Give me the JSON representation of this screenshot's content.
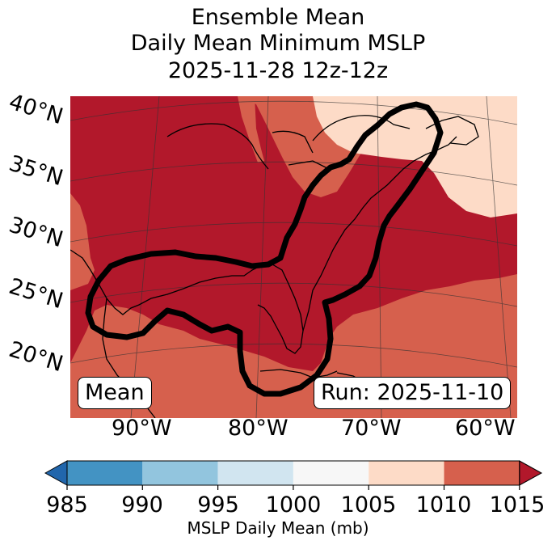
{
  "title": {
    "line1": "Ensemble Mean",
    "line2": "Daily Mean Minimum MSLP",
    "line3": "2025-11-28 12z-12z"
  },
  "map": {
    "lat_labels": [
      "40°N",
      "35°N",
      "30°N",
      "25°N",
      "20°N"
    ],
    "lon_labels": [
      "90°W",
      "80°W",
      "70°W",
      "60°W"
    ],
    "badge_left": "Mean",
    "badge_right": "Run: 2025-11-10",
    "colors": {
      "1010-1015": "#b2182b",
      "1005-1010": "#d6604d",
      "1000-1005": "#fddbc7",
      "contour": "#000000"
    }
  },
  "colorbar": {
    "label": "MSLP Daily Mean (mb)",
    "ticks": [
      "985",
      "990",
      "995",
      "1000",
      "1005",
      "1010",
      "1015"
    ],
    "colors": [
      "#2166ac",
      "#4393c3",
      "#92c5de",
      "#d1e5f0",
      "#f7f7f7",
      "#fddbc7",
      "#d6604d",
      "#b2182b"
    ]
  }
}
